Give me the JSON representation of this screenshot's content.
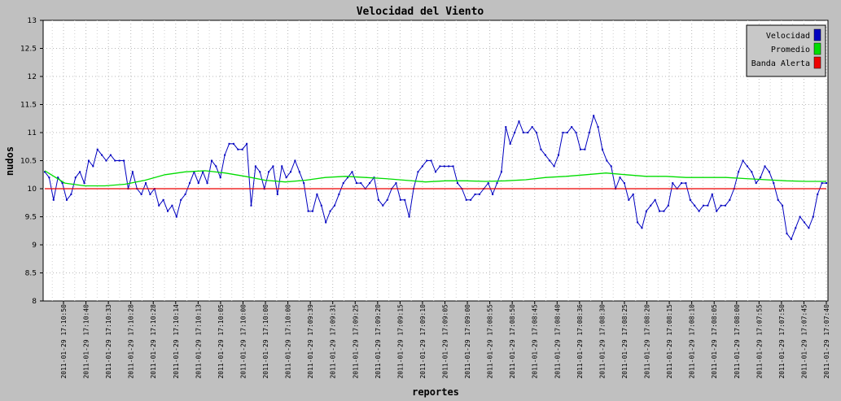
{
  "chart_data": {
    "type": "line",
    "title": "Velocidad del Viento",
    "xlabel": "reportes",
    "ylabel": "nudos",
    "ylim": [
      8,
      13
    ],
    "yticks": [
      8,
      8.5,
      9,
      9.5,
      10,
      10.5,
      11,
      11.5,
      12,
      12.5,
      13
    ],
    "grid": true,
    "legend_position": "top-right",
    "xticks": [
      "2011-01-29 17:10:50",
      "2011-01-29 17:10:40",
      "2011-01-29 17:10:33",
      "2011-01-29 17:10:28",
      "2011-01-29 17:10:28",
      "2011-01-29 17:10:14",
      "2011-01-29 17:10:13",
      "2011-01-29 17:10:05",
      "2011-01-29 17:10:00",
      "2011-01-29 17:10:00",
      "2011-01-29 17:10:00",
      "2011-01-29 17:09:39",
      "2011-01-29 17:09:31",
      "2011-01-29 17:09:25",
      "2011-01-29 17:09:20",
      "2011-01-29 17:09:15",
      "2011-01-29 17:09:10",
      "2011-01-29 17:09:05",
      "2011-01-29 17:09:00",
      "2011-01-29 17:08:55",
      "2011-01-29 17:08:50",
      "2011-01-29 17:08:45",
      "2011-01-29 17:08:40",
      "2011-01-29 17:08:36",
      "2011-01-29 17:08:30",
      "2011-01-29 17:08:25",
      "2011-01-29 17:08:20",
      "2011-01-29 17:08:15",
      "2011-01-29 17:08:10",
      "2011-01-29 17:08:05",
      "2011-01-29 17:08:00",
      "2011-01-29 17:07:55",
      "2011-01-29 17:07:50",
      "2011-01-29 17:07:45",
      "2011-01-29 17:07:40"
    ],
    "series": [
      {
        "name": "Velocidad",
        "color": "#0000c0",
        "values": [
          10.3,
          10.2,
          9.8,
          10.2,
          10.1,
          9.8,
          9.9,
          10.2,
          10.3,
          10.1,
          10.5,
          10.4,
          10.7,
          10.6,
          10.5,
          10.6,
          10.5,
          10.5,
          10.5,
          10.0,
          10.3,
          10.0,
          9.9,
          10.1,
          9.9,
          10.0,
          9.7,
          9.8,
          9.6,
          9.7,
          9.5,
          9.8,
          9.9,
          10.1,
          10.3,
          10.1,
          10.3,
          10.1,
          10.5,
          10.4,
          10.2,
          10.6,
          10.8,
          10.8,
          10.7,
          10.7,
          10.8,
          9.7,
          10.4,
          10.3,
          10.0,
          10.3,
          10.4,
          9.9,
          10.4,
          10.2,
          10.3,
          10.5,
          10.3,
          10.1,
          9.6,
          9.6,
          9.9,
          9.7,
          9.4,
          9.6,
          9.7,
          9.9,
          10.1,
          10.2,
          10.3,
          10.1,
          10.1,
          10.0,
          10.1,
          10.2,
          9.8,
          9.7,
          9.8,
          10.0,
          10.1,
          9.8,
          9.8,
          9.5,
          10.0,
          10.3,
          10.4,
          10.5,
          10.5,
          10.3,
          10.4,
          10.4,
          10.4,
          10.4,
          10.1,
          10.0,
          9.8,
          9.8,
          9.9,
          9.9,
          10.0,
          10.1,
          9.9,
          10.1,
          10.3,
          11.1,
          10.8,
          11.0,
          11.2,
          11.0,
          11.0,
          11.1,
          11.0,
          10.7,
          10.6,
          10.5,
          10.4,
          10.6,
          11.0,
          11.0,
          11.1,
          11.0,
          10.7,
          10.7,
          11.0,
          11.3,
          11.1,
          10.7,
          10.5,
          10.4,
          10.0,
          10.2,
          10.1,
          9.8,
          9.9,
          9.4,
          9.3,
          9.6,
          9.7,
          9.8,
          9.6,
          9.6,
          9.7,
          10.1,
          10.0,
          10.1,
          10.1,
          9.8,
          9.7,
          9.6,
          9.7,
          9.7,
          9.9,
          9.6,
          9.7,
          9.7,
          9.8,
          10.0,
          10.3,
          10.5,
          10.4,
          10.3,
          10.1,
          10.2,
          10.4,
          10.3,
          10.1,
          9.8,
          9.7,
          9.2,
          9.1,
          9.3,
          9.5,
          9.4,
          9.3,
          9.5,
          9.9,
          10.1,
          10.1
        ]
      },
      {
        "name": "Promedio",
        "color": "#00dd00",
        "values": [
          10.32,
          10.1,
          10.05,
          10.05,
          10.08,
          10.15,
          10.25,
          10.3,
          10.32,
          10.28,
          10.22,
          10.15,
          10.12,
          10.15,
          10.2,
          10.22,
          10.2,
          10.18,
          10.15,
          10.12,
          10.14,
          10.14,
          10.13,
          10.14,
          10.16,
          10.2,
          10.22,
          10.25,
          10.28,
          10.25,
          10.22,
          10.22,
          10.2,
          10.2,
          10.2,
          10.18,
          10.16,
          10.14,
          10.13,
          10.13
        ]
      },
      {
        "name": "Banda Alerta",
        "color": "#ee0000",
        "values": [
          10,
          10
        ]
      }
    ]
  }
}
